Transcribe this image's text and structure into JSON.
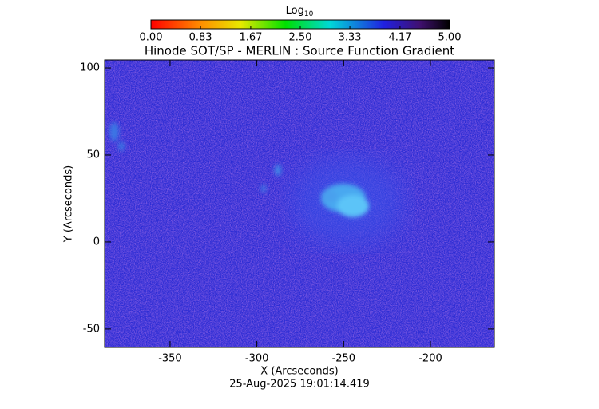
{
  "chart_data": {
    "type": "image",
    "title": "Hinode SOT/SP - MERLIN : Source Function Gradient",
    "xlabel": "X (Arcseconds)",
    "ylabel": "Y (Arcseconds)",
    "xlim": [
      -387.7,
      -163.2
    ],
    "ylim": [
      -60.6,
      104.6
    ],
    "xticks": [
      -350,
      -300,
      -250,
      -200
    ],
    "yticks": [
      -50,
      0,
      50,
      100
    ],
    "colorbar": {
      "label": "Log",
      "label_sub": "10",
      "lim": [
        0,
        5
      ],
      "ticks": [
        {
          "value": 0,
          "label": "0.00"
        },
        {
          "value": 0.83,
          "label": "0.83"
        },
        {
          "value": 1.67,
          "label": "1.67"
        },
        {
          "value": 2.5,
          "label": "2.50"
        },
        {
          "value": 3.33,
          "label": "3.33"
        },
        {
          "value": 4.17,
          "label": "4.17"
        },
        {
          "value": 5,
          "label": "5.00"
        }
      ]
    },
    "footer": "25-Aug-2025 19:01:14.419"
  }
}
